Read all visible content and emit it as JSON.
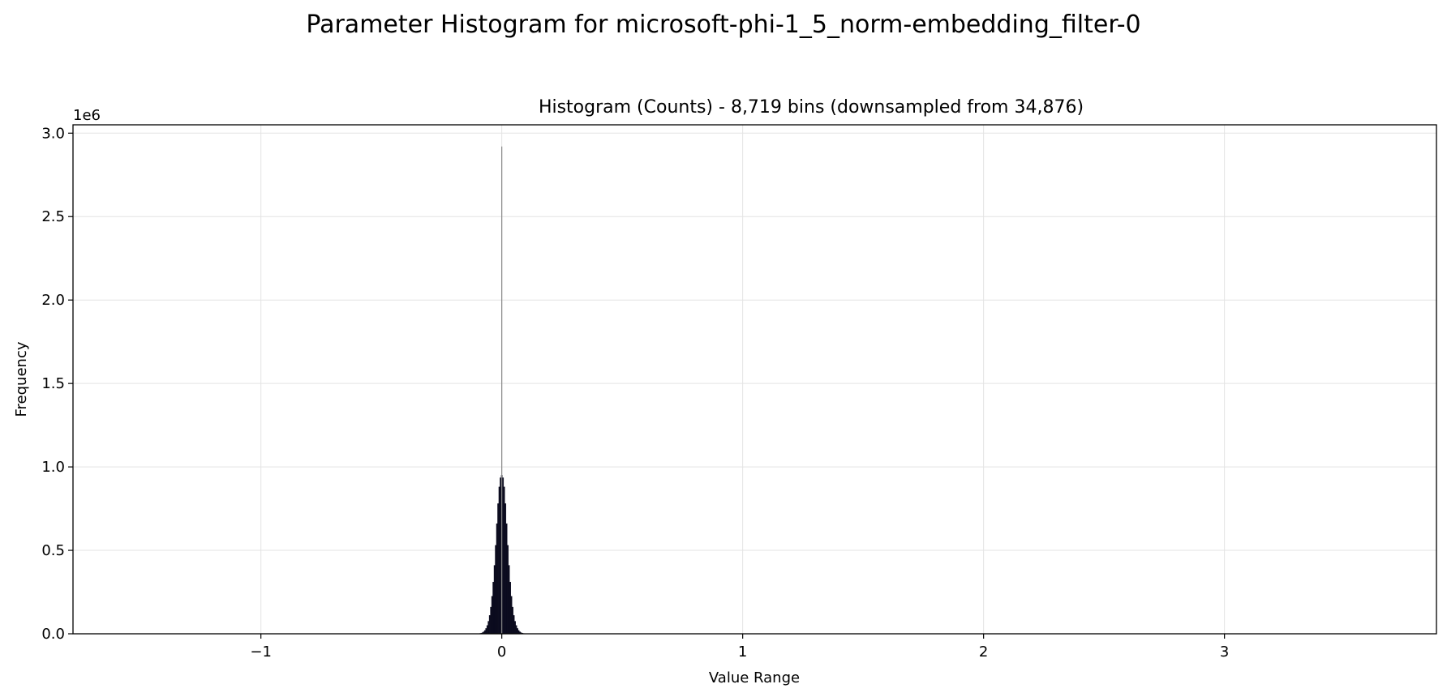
{
  "figure": {
    "suptitle": "Parameter Histogram for microsoft-phi-1_5_norm-embedding_filter-0"
  },
  "chart_data": {
    "type": "bar",
    "title": "Histogram (Counts) - 8,719 bins (downsampled from 34,876)",
    "xlabel": "Value Range",
    "ylabel": "Frequency",
    "y_offset_label": "1e6",
    "y_scale": 1000000,
    "xlim": [
      -1.78,
      3.88
    ],
    "ylim": [
      0,
      3050000
    ],
    "xticks": [
      -1,
      0,
      1,
      2,
      3
    ],
    "xtick_labels": [
      "−1",
      "0",
      "1",
      "2",
      "3"
    ],
    "yticks": [
      0,
      500000,
      1000000,
      1500000,
      2000000,
      2500000,
      3000000
    ],
    "ytick_labels": [
      "0.0",
      "0.5",
      "1.0",
      "1.5",
      "2.0",
      "2.5",
      "3.0"
    ],
    "grid": true,
    "bar_color": "#0b0b1e",
    "spike_color": "#888888",
    "bins": {
      "x": [
        -0.09,
        -0.085,
        -0.08,
        -0.075,
        -0.07,
        -0.065,
        -0.06,
        -0.055,
        -0.05,
        -0.045,
        -0.04,
        -0.035,
        -0.03,
        -0.025,
        -0.02,
        -0.015,
        -0.01,
        -0.005,
        0.0,
        0.005,
        0.01,
        0.015,
        0.02,
        0.025,
        0.03,
        0.035,
        0.04,
        0.045,
        0.05,
        0.055,
        0.06,
        0.065,
        0.07,
        0.075,
        0.08,
        0.085,
        0.09
      ],
      "counts": [
        2000,
        4000,
        7000,
        12000,
        20000,
        32000,
        50000,
        75000,
        110000,
        160000,
        225000,
        310000,
        410000,
        530000,
        660000,
        780000,
        880000,
        935000,
        950000,
        935000,
        880000,
        780000,
        660000,
        530000,
        410000,
        310000,
        225000,
        160000,
        110000,
        75000,
        50000,
        32000,
        20000,
        12000,
        7000,
        4000,
        2000
      ]
    },
    "spike": {
      "x": 0.0,
      "count": 2920000
    }
  }
}
